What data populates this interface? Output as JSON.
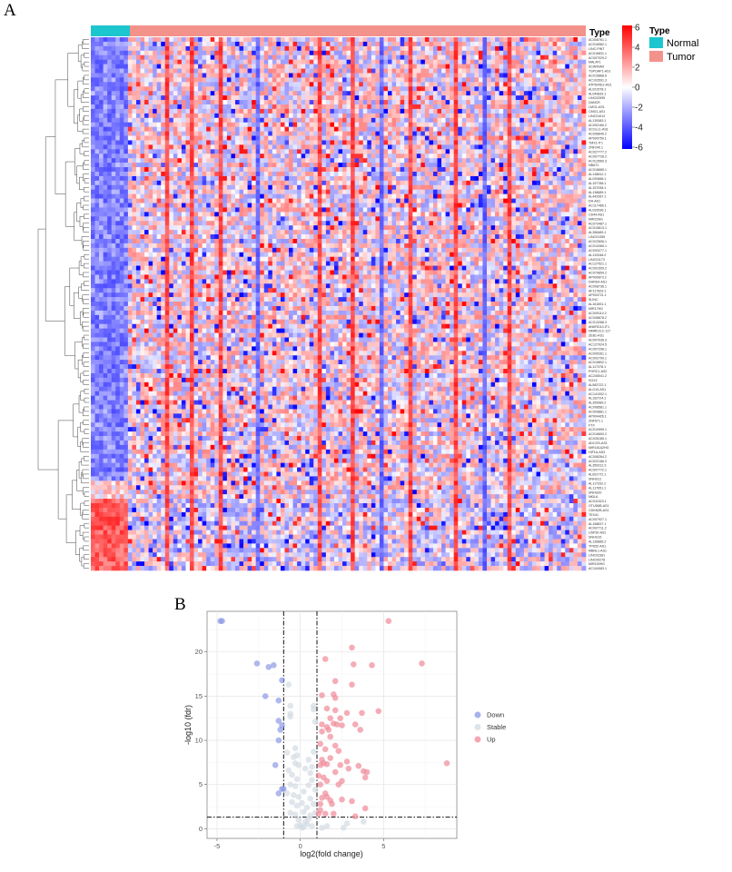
{
  "panels": {
    "a_label": "A",
    "b_label": "B"
  },
  "chart_data": [
    {
      "type": "heatmap",
      "annotation_title": "Type",
      "groups": [
        {
          "name": "Normal",
          "color": "#1cc6cf"
        },
        {
          "name": "Tumor",
          "color": "#f3928b"
        }
      ],
      "legend_title": "Type",
      "colorbar": {
        "ticks": [
          "6",
          "4",
          "2",
          "0",
          "-2",
          "-4",
          "-6"
        ],
        "range": [
          -6,
          6
        ],
        "low": "#0000ff",
        "mid": "#ffffff",
        "high": "#ff0000"
      },
      "row_dendrogram": true,
      "row_labels": [
        "AC008761.1",
        "AC016582.1",
        "LINC-PINT",
        "AC016831.1",
        "AC007029.2",
        "MALAT1",
        "SCARNA9",
        "TSPOAP1-AS1",
        "AC015868.6",
        "AC103591.3",
        "ATP6V0E2-AS1",
        "AL021578.1",
        "AL049839.1",
        "LINC02595",
        "DANCR",
        "LMO1-AS1",
        "CMG1-AS1",
        "LINC01614",
        "AL139383.1",
        "AC092160.2",
        "SCGLL1-AS1",
        "AC008649.2",
        "AP000759.1",
        "TMX1-IT1",
        "ZNF240.1",
        "AC027777.2",
        "AC007728.2",
        "AC013560.3",
        "NBAT1",
        "AC018665.1",
        "AL138812.1",
        "AL020668.1",
        "AL157788.1",
        "AL157938.1",
        "AL138689.1",
        "AL442067.1",
        "DH-AS1",
        "AC117466.1",
        "AL033536.1",
        "CD44-AS1",
        "MIR22HG",
        "AC073487.1",
        "AC015813.1",
        "AL358489.1",
        "LINC01355",
        "AC022606.1",
        "AC010365.1",
        "AC093277.1",
        "AL133348.2",
        "LINC01173",
        "AC127521.1",
        "AC091505.2",
        "AC079854.2",
        "AP000873.2",
        "DHRS4-AS1",
        "AC008736.1",
        "AF117829.1",
        "AP003721.1",
        "SLINC",
        "AL161891.1",
        "MIR17HG",
        "AC009110.2",
        "AC008878.2",
        "AC013268.3",
        "ANKRD10-IT1",
        "NMRK2LC-117",
        "ZEB1-AS1",
        "AC007036.3",
        "AC127024.5",
        "AC007298.1",
        "AC005261.1",
        "AC002799.1",
        "AC015802.1",
        "AL117378.1",
        "PGRC1-AS2",
        "AC245041.2",
        "SOX2",
        "AL583722.1",
        "ALG10-AS1",
        "AC141002.1",
        "AL162724.2",
        "AL359989.2",
        "AC008581.1",
        "AC009881.1",
        "AP004426.1",
        "ZNF571.1",
        "FTX",
        "AC010999.1",
        "AC016600.2",
        "AC026185.1",
        "ADCOS-AS1",
        "MIR181A2HG",
        "HIF1A-AS3",
        "AC008264.2",
        "AC022166.2",
        "AL359312.3",
        "AC007772.1",
        "AL691772.1",
        "SNHG11",
        "AL117332.2",
        "AL117651.1",
        "SNHG20",
        "NKILA",
        "AC011523.1",
        "OTUD6B-AS1",
        "CDKN2B-AS1",
        "TEX41",
        "AC007927.1",
        "AL158837.1",
        "AC097711.2",
        "USP30-AS1",
        "SNHG15",
        "AL136885.2",
        "TPD52-AS1",
        "MBNL1-AS1",
        "LINC02381",
        "LINC00278",
        "MIR100HG",
        "AC104083.1"
      ]
    },
    {
      "type": "scatter",
      "xlabel": "log2(fold change)",
      "ylabel": "-log10 (fdr)",
      "xlim": [
        -5.6,
        9.4
      ],
      "ylim": [
        -1.1,
        24.6
      ],
      "xticks": [
        "-5",
        "0",
        "5"
      ],
      "yticks": [
        "0",
        "5",
        "10",
        "15",
        "20"
      ],
      "grid": true,
      "thresholds": {
        "log2fc": [
          -1,
          1
        ],
        "neg_log10_fdr": 1.3
      },
      "legend_position": "right",
      "series": [
        {
          "name": "Down",
          "color": "#8b9ae6",
          "points": [
            [
              -4.8,
              23.5
            ],
            [
              -4.7,
              23.5
            ],
            [
              -2.6,
              18.7
            ],
            [
              -1.9,
              18.3
            ],
            [
              -1.6,
              18.5
            ],
            [
              -1.1,
              16.8
            ],
            [
              -2.1,
              15.0
            ],
            [
              -1.3,
              14.5
            ],
            [
              -1.3,
              12.2
            ],
            [
              -1.1,
              11.7
            ],
            [
              -1.2,
              11.2
            ],
            [
              -1.3,
              10.0
            ],
            [
              -1.5,
              7.2
            ],
            [
              -1.1,
              4.5
            ],
            [
              -1.3,
              4.0
            ],
            [
              -1.0,
              4.5
            ]
          ]
        },
        {
          "name": "Stable",
          "color": "#d3dbe2",
          "points": [
            [
              -0.7,
              16.3
            ],
            [
              -0.6,
              13.9
            ],
            [
              -0.6,
              13.0
            ],
            [
              -0.6,
              12.7
            ],
            [
              0.8,
              13.9
            ],
            [
              0.8,
              13.5
            ],
            [
              0.9,
              12.1
            ],
            [
              -0.3,
              9.1
            ],
            [
              -0.2,
              8.3
            ],
            [
              -0.4,
              8.1
            ],
            [
              -0.8,
              8.6
            ],
            [
              -0.3,
              7.4
            ],
            [
              -0.1,
              7.2
            ],
            [
              -0.7,
              6.6
            ],
            [
              -0.5,
              6.1
            ],
            [
              0.8,
              8.7
            ],
            [
              0.5,
              7.8
            ],
            [
              0.7,
              7.0
            ],
            [
              0.6,
              6.3
            ],
            [
              0.3,
              6.8
            ],
            [
              -0.2,
              5.6
            ],
            [
              -0.6,
              5.0
            ],
            [
              -0.3,
              4.8
            ],
            [
              -0.8,
              4.0
            ],
            [
              -0.4,
              3.8
            ],
            [
              -0.1,
              3.6
            ],
            [
              0.2,
              4.2
            ],
            [
              0.5,
              4.9
            ],
            [
              0.7,
              5.5
            ],
            [
              0.9,
              4.4
            ],
            [
              0.6,
              3.4
            ],
            [
              -0.5,
              3.0
            ],
            [
              -0.2,
              2.6
            ],
            [
              0.1,
              2.9
            ],
            [
              0.4,
              2.4
            ],
            [
              0.8,
              2.8
            ],
            [
              -0.6,
              1.8
            ],
            [
              -0.3,
              1.6
            ],
            [
              0.2,
              1.9
            ],
            [
              0.6,
              1.5
            ],
            [
              0.9,
              1.8
            ],
            [
              -0.1,
              1.0
            ],
            [
              0.3,
              0.8
            ],
            [
              0.5,
              1.1
            ],
            [
              0.0,
              0.4
            ],
            [
              0.2,
              0.2
            ],
            [
              0.4,
              0.5
            ],
            [
              -0.2,
              0.3
            ],
            [
              0.7,
              0.3
            ],
            [
              0.1,
              0.1
            ],
            [
              1.6,
              0.3
            ],
            [
              2.6,
              0.1
            ],
            [
              2.8,
              0.6
            ],
            [
              3.8,
              0.8
            ],
            [
              1.3,
              0.1
            ]
          ]
        },
        {
          "name": "Up",
          "color": "#f08a98",
          "points": [
            [
              5.3,
              23.5
            ],
            [
              3.1,
              20.5
            ],
            [
              1.5,
              19.2
            ],
            [
              3.2,
              18.6
            ],
            [
              4.3,
              18.5
            ],
            [
              7.3,
              18.7
            ],
            [
              2.1,
              16.7
            ],
            [
              3.1,
              16.3
            ],
            [
              1.3,
              15.1
            ],
            [
              2.0,
              15.2
            ],
            [
              2.1,
              14.8
            ],
            [
              1.6,
              13.6
            ],
            [
              2.1,
              13.4
            ],
            [
              2.8,
              13.1
            ],
            [
              3.7,
              13.1
            ],
            [
              4.7,
              13.3
            ],
            [
              1.8,
              12.5
            ],
            [
              2.4,
              12.5
            ],
            [
              1.3,
              11.8
            ],
            [
              1.6,
              11.5
            ],
            [
              1.7,
              11.2
            ],
            [
              2.0,
              11.9
            ],
            [
              2.2,
              11.8
            ],
            [
              2.5,
              11.7
            ],
            [
              3.3,
              11.8
            ],
            [
              3.6,
              11.2
            ],
            [
              1.3,
              11.0
            ],
            [
              1.8,
              10.4
            ],
            [
              1.2,
              9.6
            ],
            [
              1.5,
              9.0
            ],
            [
              2.1,
              9.4
            ],
            [
              2.3,
              8.8
            ],
            [
              1.3,
              7.8
            ],
            [
              1.8,
              8.0
            ],
            [
              1.2,
              7.2
            ],
            [
              1.4,
              7.4
            ],
            [
              1.6,
              7.3
            ],
            [
              2.4,
              7.2
            ],
            [
              2.8,
              7.6
            ],
            [
              3.5,
              7.1
            ],
            [
              3.8,
              6.5
            ],
            [
              4.0,
              6.4
            ],
            [
              8.8,
              7.4
            ],
            [
              2.1,
              6.4
            ],
            [
              2.9,
              6.8
            ],
            [
              1.1,
              6.0
            ],
            [
              1.4,
              5.8
            ],
            [
              1.6,
              5.4
            ],
            [
              2.3,
              5.0
            ],
            [
              2.5,
              5.4
            ],
            [
              3.9,
              5.8
            ],
            [
              1.2,
              5.0
            ],
            [
              1.5,
              4.0
            ],
            [
              1.3,
              3.5
            ],
            [
              1.6,
              3.6
            ],
            [
              1.8,
              3.2
            ],
            [
              2.5,
              3.3
            ],
            [
              3.1,
              3.1
            ],
            [
              1.2,
              2.8
            ],
            [
              1.9,
              2.8
            ],
            [
              3.9,
              2.3
            ],
            [
              1.1,
              1.7
            ],
            [
              1.5,
              1.7
            ],
            [
              2.0,
              1.7
            ],
            [
              3.3,
              1.4
            ],
            [
              1.2,
              2.1
            ]
          ]
        }
      ]
    }
  ]
}
